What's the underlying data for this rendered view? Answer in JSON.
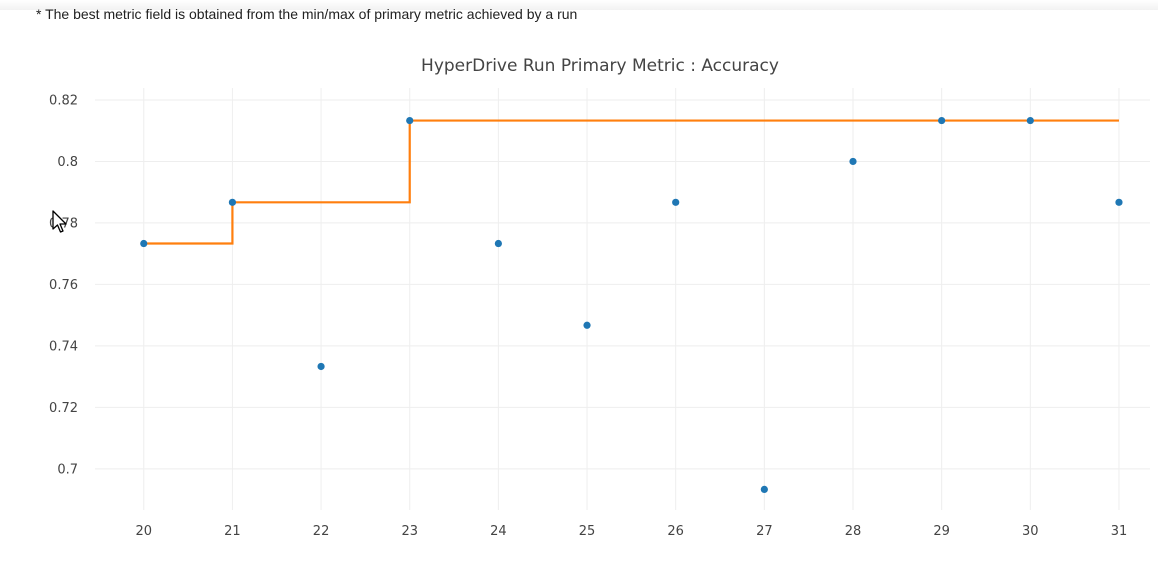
{
  "footnote": "* The best metric field is obtained from the min/max of primary metric achieved by a run",
  "chart_data": {
    "type": "scatter",
    "title": "HyperDrive Run Primary Metric : Accuracy",
    "xlabel": "",
    "ylabel": "",
    "x_ticks": [
      20,
      21,
      22,
      23,
      24,
      25,
      26,
      27,
      28,
      29,
      30,
      31
    ],
    "y_ticks": [
      0.7,
      0.72,
      0.74,
      0.76,
      0.78,
      0.8,
      0.82
    ],
    "y_tick_labels": [
      "0.7",
      "0.72",
      "0.74",
      "0.76",
      "0.78",
      "0.8",
      "0.82"
    ],
    "xlim": [
      19.45,
      31.35
    ],
    "ylim": [
      0.6866,
      0.8239
    ],
    "grid": true,
    "series": [
      {
        "kind": "scatter",
        "color": "#1f77b4",
        "x": [
          20,
          21,
          22,
          23,
          24,
          25,
          26,
          27,
          28,
          29,
          30,
          31
        ],
        "y": [
          0.7733,
          0.7867,
          0.7333,
          0.8133,
          0.7733,
          0.7467,
          0.7867,
          0.6933,
          0.8,
          0.8133,
          0.8133,
          0.7867
        ]
      },
      {
        "kind": "step-line",
        "color": "#ff7f0e",
        "x": [
          20,
          21,
          22,
          23,
          24,
          25,
          26,
          27,
          28,
          29,
          30,
          31
        ],
        "y": [
          0.7733,
          0.7867,
          0.7867,
          0.8133,
          0.8133,
          0.8133,
          0.8133,
          0.8133,
          0.8133,
          0.8133,
          0.8133,
          0.8133
        ]
      }
    ]
  }
}
